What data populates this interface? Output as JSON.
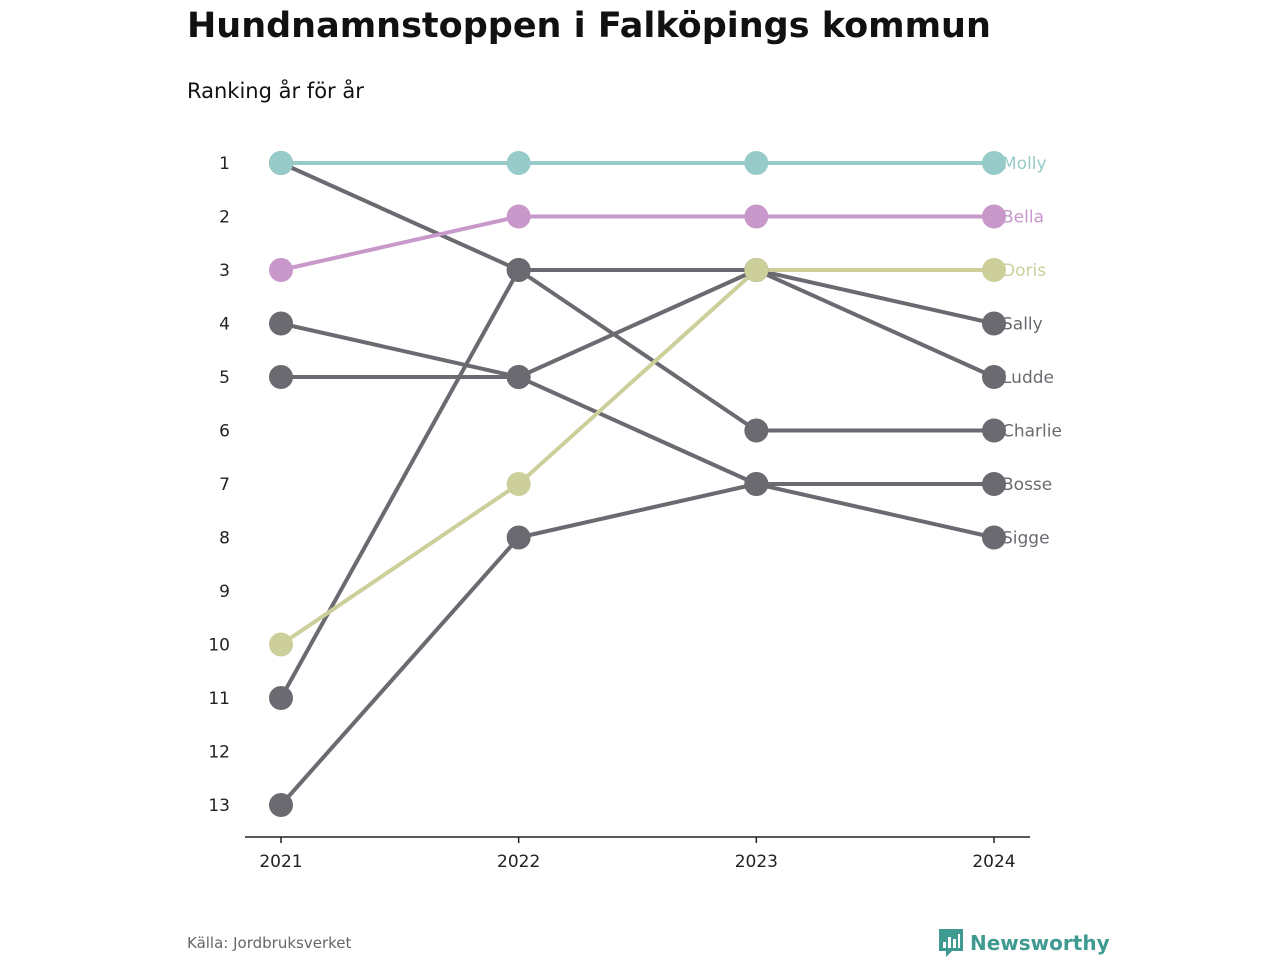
{
  "title": "Hundnamnstoppen i Falköpings kommun",
  "subtitle": "Ranking år för år",
  "source": "Källa: Jordbruksverket",
  "brand": "Newsworthy",
  "colors": {
    "Molly": "#96cbc9",
    "Bella": "#c898cb",
    "Doris": "#cdcf9b",
    "default": "#6b6a70",
    "brand": "#3f9b92"
  },
  "chart_data": {
    "type": "line",
    "x": [
      "2021",
      "2022",
      "2023",
      "2024"
    ],
    "y_ticks": [
      "1",
      "2",
      "3",
      "4",
      "5",
      "6",
      "7",
      "8",
      "9",
      "10",
      "11",
      "12",
      "13"
    ],
    "ylim": [
      1,
      13
    ],
    "y_inverted": true,
    "series": [
      {
        "name": "Sigge",
        "values": [
          13,
          8,
          7,
          8
        ]
      },
      {
        "name": "Bosse",
        "values": [
          4,
          5,
          7,
          7
        ]
      },
      {
        "name": "Charlie",
        "values": [
          1,
          3,
          6,
          6
        ]
      },
      {
        "name": "Ludde",
        "values": [
          11,
          3,
          3,
          5
        ]
      },
      {
        "name": "Sally",
        "values": [
          5,
          5,
          3,
          4
        ]
      },
      {
        "name": "Doris",
        "values": [
          10,
          7,
          3,
          3
        ]
      },
      {
        "name": "Bella",
        "values": [
          3,
          2,
          2,
          2
        ]
      },
      {
        "name": "Molly",
        "values": [
          1,
          1,
          1,
          1
        ]
      }
    ]
  }
}
